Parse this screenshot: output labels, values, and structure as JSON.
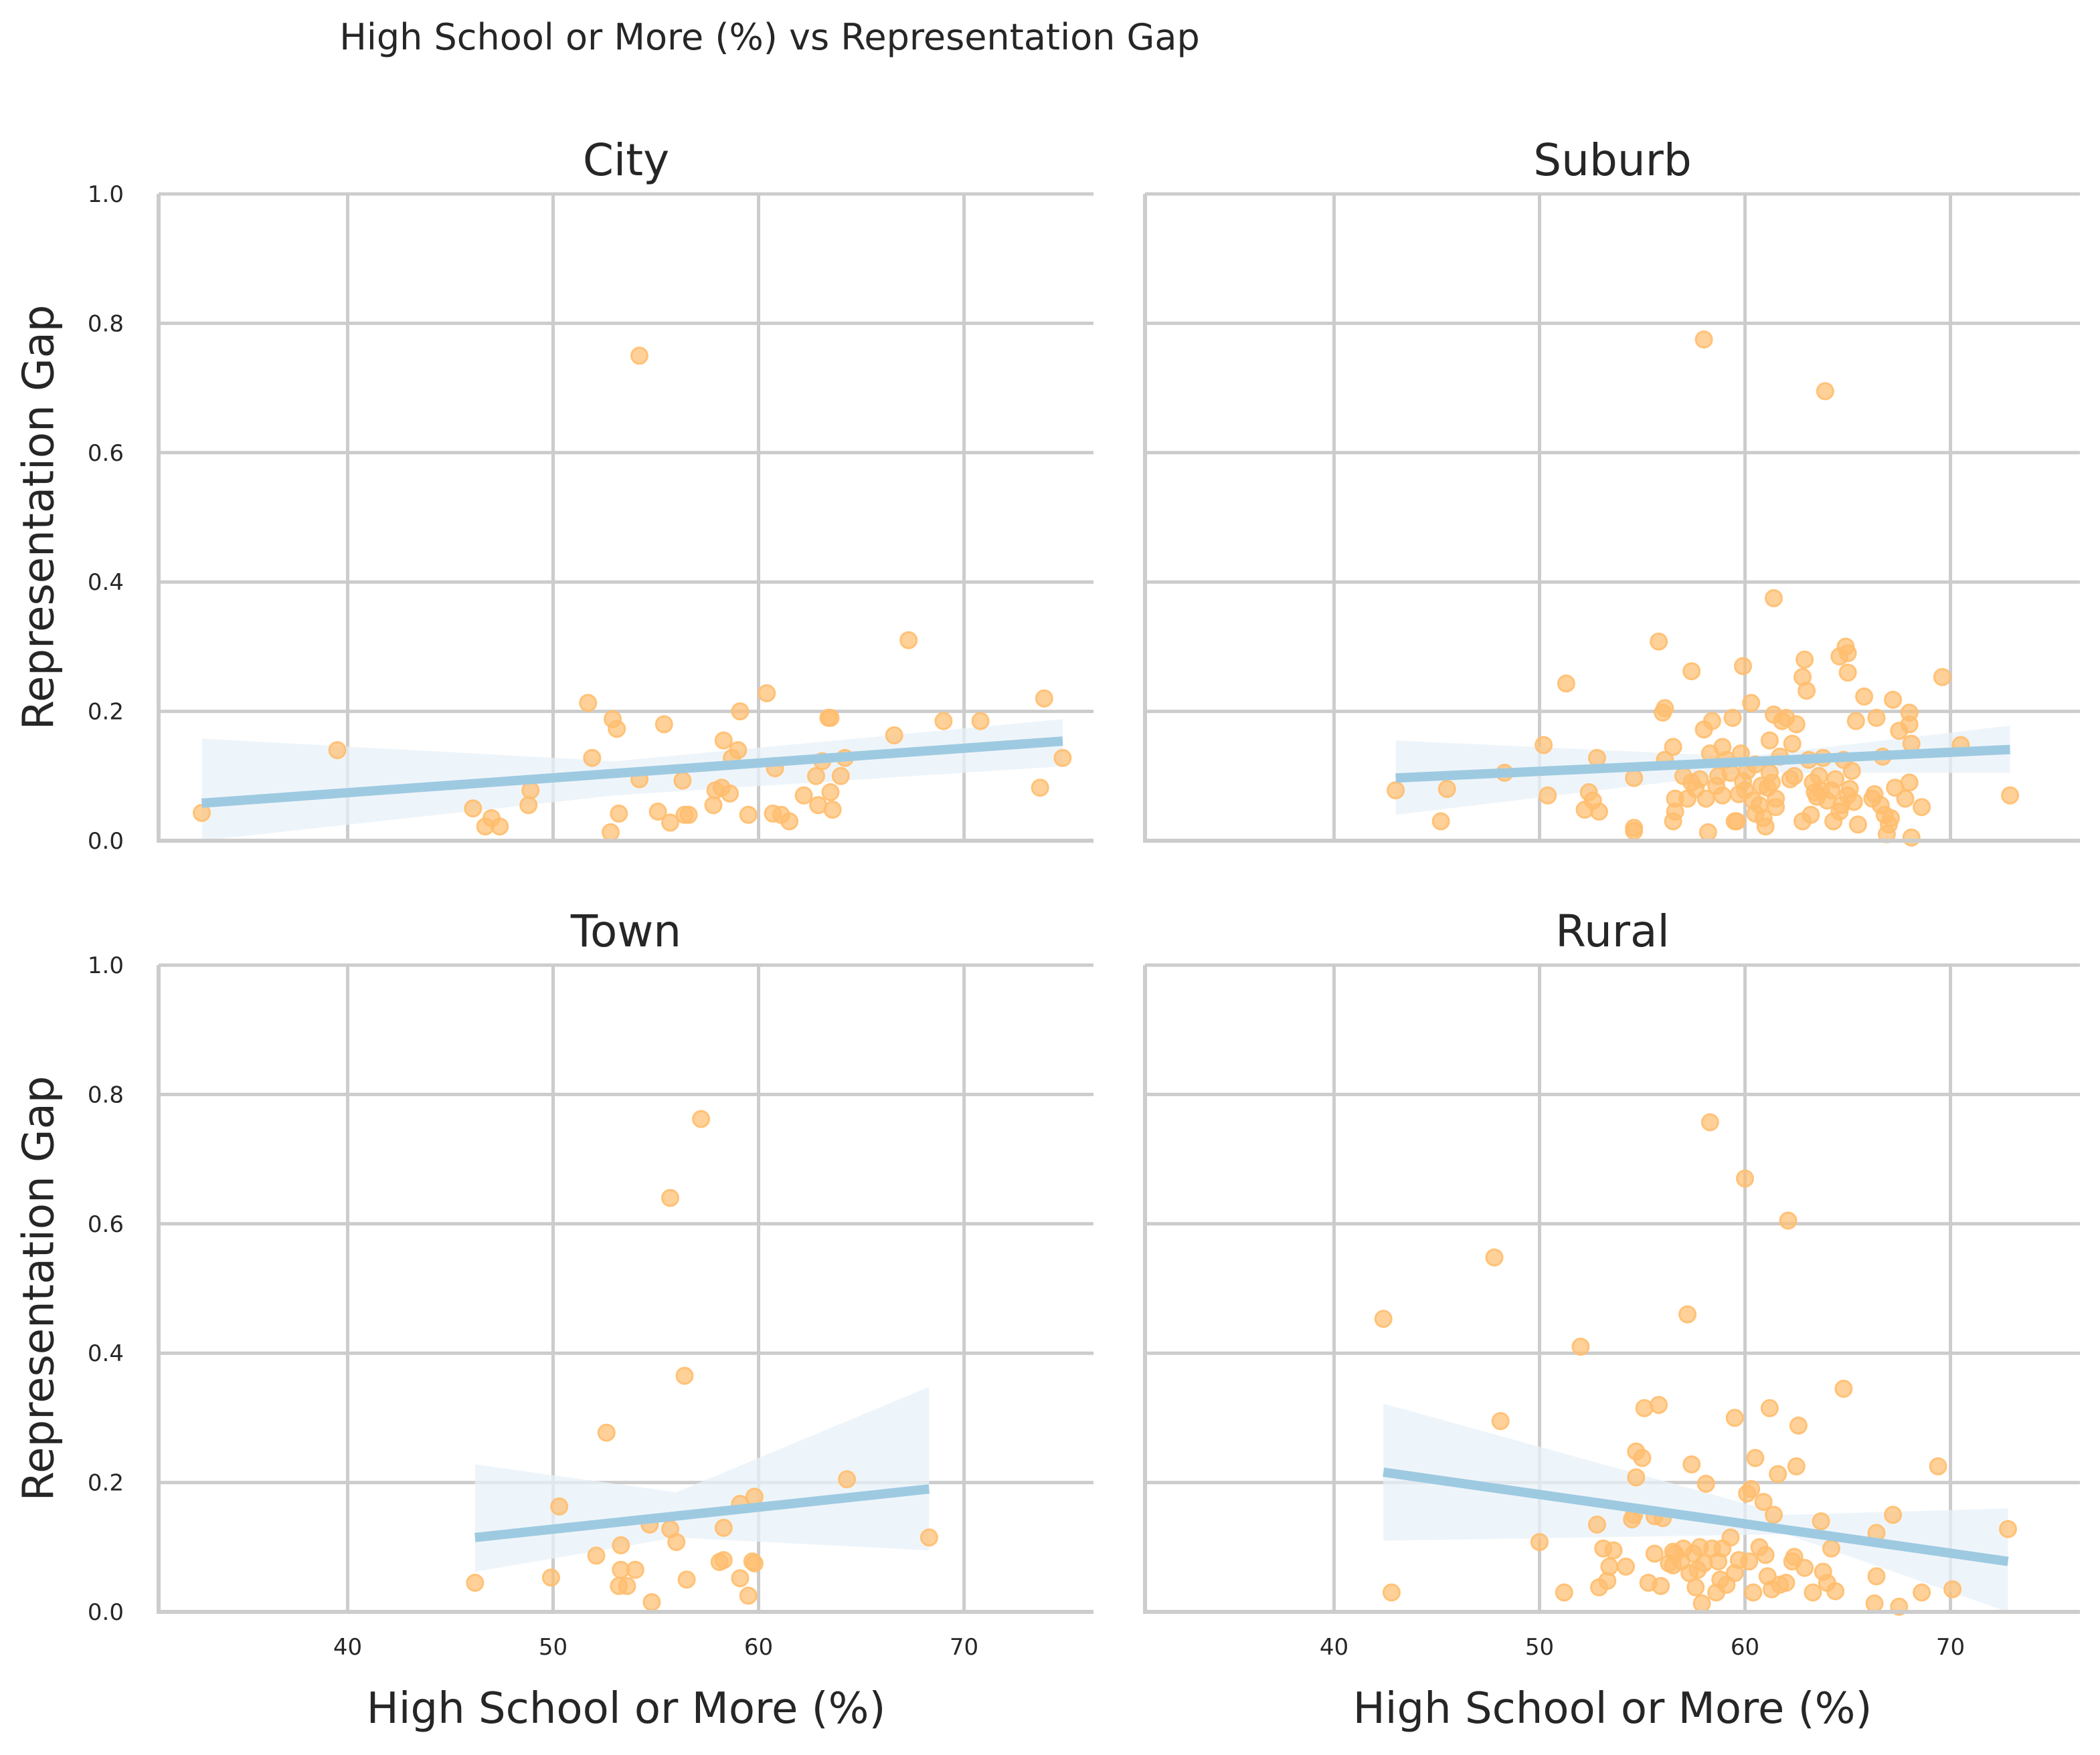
{
  "figure": {
    "title": "High School or More (%) vs Representation Gap",
    "xlabel": "High School or More (%)",
    "ylabel": "Representation Gap"
  },
  "chart_data": [
    {
      "type": "scatter",
      "title": "City",
      "xlabel": "",
      "ylabel": "Representation Gap",
      "xlim": [
        30.8,
        76.3
      ],
      "ylim": [
        0,
        1
      ],
      "xticks": [
        "40",
        "50",
        "60",
        "70"
      ],
      "yticks": [
        "0.0",
        "0.2",
        "0.4",
        "0.6",
        "0.8",
        "1.0"
      ],
      "grid": true,
      "points": [
        [
          32.9,
          0.043
        ],
        [
          39.5,
          0.14
        ],
        [
          46.1,
          0.05
        ],
        [
          46.7,
          0.022
        ],
        [
          47.0,
          0.035
        ],
        [
          47.4,
          0.022
        ],
        [
          48.8,
          0.055
        ],
        [
          48.9,
          0.078
        ],
        [
          51.7,
          0.213
        ],
        [
          51.9,
          0.128
        ],
        [
          52.8,
          0.013
        ],
        [
          52.9,
          0.188
        ],
        [
          53.1,
          0.173
        ],
        [
          53.2,
          0.042
        ],
        [
          54.2,
          0.095
        ],
        [
          54.2,
          0.75
        ],
        [
          55.1,
          0.045
        ],
        [
          55.4,
          0.18
        ],
        [
          55.7,
          0.028
        ],
        [
          56.3,
          0.093
        ],
        [
          56.4,
          0.04
        ],
        [
          56.6,
          0.04
        ],
        [
          57.8,
          0.055
        ],
        [
          57.9,
          0.078
        ],
        [
          58.2,
          0.082
        ],
        [
          58.3,
          0.155
        ],
        [
          58.6,
          0.073
        ],
        [
          58.7,
          0.128
        ],
        [
          59.0,
          0.14
        ],
        [
          59.1,
          0.2
        ],
        [
          59.5,
          0.04
        ],
        [
          60.4,
          0.228
        ],
        [
          60.7,
          0.042
        ],
        [
          60.8,
          0.112
        ],
        [
          61.1,
          0.04
        ],
        [
          61.5,
          0.03
        ],
        [
          62.2,
          0.07
        ],
        [
          62.8,
          0.1
        ],
        [
          62.9,
          0.055
        ],
        [
          63.1,
          0.123
        ],
        [
          63.4,
          0.19
        ],
        [
          63.5,
          0.075
        ],
        [
          63.5,
          0.19
        ],
        [
          63.6,
          0.048
        ],
        [
          64.0,
          0.1
        ],
        [
          64.2,
          0.128
        ],
        [
          66.6,
          0.163
        ],
        [
          67.3,
          0.31
        ],
        [
          69.0,
          0.185
        ],
        [
          70.8,
          0.185
        ],
        [
          73.7,
          0.082
        ],
        [
          73.9,
          0.22
        ],
        [
          74.8,
          0.128
        ]
      ],
      "trend": {
        "x": [
          32.9,
          74.8
        ],
        "y": [
          0.058,
          0.154
        ]
      },
      "ci": {
        "x": [
          32.9,
          53.0,
          74.8
        ],
        "upper": [
          0.158,
          0.123,
          0.188
        ],
        "lower": [
          0.0,
          0.07,
          0.115
        ]
      }
    },
    {
      "type": "scatter",
      "title": "Suburb",
      "xlabel": "",
      "ylabel": "",
      "xlim": [
        30.8,
        76.3
      ],
      "ylim": [
        0,
        1
      ],
      "xticks": [
        "40",
        "50",
        "60",
        "70"
      ],
      "yticks": [
        "0.0",
        "0.2",
        "0.4",
        "0.6",
        "0.8",
        "1.0"
      ],
      "grid": true,
      "points": [
        [
          43.0,
          0.078
        ],
        [
          45.2,
          0.03
        ],
        [
          45.5,
          0.08
        ],
        [
          48.3,
          0.105
        ],
        [
          50.2,
          0.148
        ],
        [
          50.4,
          0.07
        ],
        [
          51.3,
          0.243
        ],
        [
          52.2,
          0.048
        ],
        [
          52.4,
          0.075
        ],
        [
          52.6,
          0.062
        ],
        [
          52.8,
          0.128
        ],
        [
          52.9,
          0.045
        ],
        [
          54.6,
          0.015
        ],
        [
          54.6,
          0.02
        ],
        [
          54.6,
          0.097
        ],
        [
          55.8,
          0.308
        ],
        [
          56.0,
          0.198
        ],
        [
          56.1,
          0.205
        ],
        [
          56.1,
          0.125
        ],
        [
          56.5,
          0.03
        ],
        [
          56.5,
          0.145
        ],
        [
          56.6,
          0.045
        ],
        [
          56.6,
          0.065
        ],
        [
          57.0,
          0.1
        ],
        [
          57.2,
          0.065
        ],
        [
          57.4,
          0.262
        ],
        [
          57.4,
          0.09
        ],
        [
          57.6,
          0.08
        ],
        [
          57.8,
          0.095
        ],
        [
          58.0,
          0.172
        ],
        [
          58.0,
          0.775
        ],
        [
          58.1,
          0.065
        ],
        [
          58.2,
          0.013
        ],
        [
          58.3,
          0.135
        ],
        [
          58.4,
          0.185
        ],
        [
          58.6,
          0.085
        ],
        [
          58.7,
          0.1
        ],
        [
          58.9,
          0.145
        ],
        [
          58.9,
          0.07
        ],
        [
          59.1,
          0.125
        ],
        [
          59.3,
          0.105
        ],
        [
          59.4,
          0.19
        ],
        [
          59.5,
          0.03
        ],
        [
          59.6,
          0.03
        ],
        [
          59.7,
          0.072
        ],
        [
          59.8,
          0.135
        ],
        [
          59.9,
          0.092
        ],
        [
          59.9,
          0.27
        ],
        [
          60.0,
          0.078
        ],
        [
          60.1,
          0.108
        ],
        [
          60.3,
          0.213
        ],
        [
          60.4,
          0.062
        ],
        [
          60.5,
          0.042
        ],
        [
          60.5,
          0.118
        ],
        [
          60.7,
          0.055
        ],
        [
          60.8,
          0.085
        ],
        [
          60.9,
          0.035
        ],
        [
          61.0,
          0.022
        ],
        [
          61.1,
          0.082
        ],
        [
          61.2,
          0.105
        ],
        [
          61.2,
          0.155
        ],
        [
          61.3,
          0.09
        ],
        [
          61.4,
          0.195
        ],
        [
          61.4,
          0.375
        ],
        [
          61.5,
          0.065
        ],
        [
          61.5,
          0.052
        ],
        [
          61.7,
          0.13
        ],
        [
          61.8,
          0.185
        ],
        [
          62.0,
          0.19
        ],
        [
          62.2,
          0.095
        ],
        [
          62.3,
          0.15
        ],
        [
          62.4,
          0.1
        ],
        [
          62.5,
          0.18
        ],
        [
          62.8,
          0.03
        ],
        [
          62.8,
          0.253
        ],
        [
          62.9,
          0.28
        ],
        [
          63.0,
          0.232
        ],
        [
          63.1,
          0.125
        ],
        [
          63.2,
          0.04
        ],
        [
          63.3,
          0.09
        ],
        [
          63.4,
          0.075
        ],
        [
          63.5,
          0.068
        ],
        [
          63.6,
          0.1
        ],
        [
          63.7,
          0.078
        ],
        [
          63.8,
          0.128
        ],
        [
          63.9,
          0.695
        ],
        [
          64.0,
          0.062
        ],
        [
          64.2,
          0.078
        ],
        [
          64.3,
          0.03
        ],
        [
          64.4,
          0.095
        ],
        [
          64.6,
          0.285
        ],
        [
          64.6,
          0.045
        ],
        [
          64.7,
          0.055
        ],
        [
          64.8,
          0.125
        ],
        [
          64.9,
          0.3
        ],
        [
          65.0,
          0.07
        ],
        [
          65.0,
          0.26
        ],
        [
          65.0,
          0.29
        ],
        [
          65.1,
          0.08
        ],
        [
          65.2,
          0.108
        ],
        [
          65.3,
          0.06
        ],
        [
          65.4,
          0.185
        ],
        [
          65.5,
          0.025
        ],
        [
          65.8,
          0.223
        ],
        [
          66.2,
          0.065
        ],
        [
          66.3,
          0.072
        ],
        [
          66.4,
          0.19
        ],
        [
          66.6,
          0.055
        ],
        [
          66.7,
          0.13
        ],
        [
          66.8,
          0.04
        ],
        [
          66.9,
          0.01
        ],
        [
          67.0,
          0.025
        ],
        [
          67.1,
          0.035
        ],
        [
          67.2,
          0.218
        ],
        [
          67.3,
          0.082
        ],
        [
          67.5,
          0.17
        ],
        [
          67.8,
          0.065
        ],
        [
          68.0,
          0.198
        ],
        [
          68.0,
          0.09
        ],
        [
          68.0,
          0.18
        ],
        [
          68.1,
          0.15
        ],
        [
          68.1,
          0.005
        ],
        [
          68.6,
          0.052
        ],
        [
          69.6,
          0.253
        ],
        [
          70.5,
          0.148
        ],
        [
          72.9,
          0.07
        ]
      ],
      "trend": {
        "x": [
          43.0,
          72.9
        ],
        "y": [
          0.097,
          0.141
        ]
      },
      "ci": {
        "x": [
          43.0,
          60.0,
          72.9
        ],
        "upper": [
          0.155,
          0.13,
          0.178
        ],
        "lower": [
          0.04,
          0.105,
          0.105
        ]
      }
    },
    {
      "type": "scatter",
      "title": "Town",
      "xlabel": "High School or More (%)",
      "ylabel": "Representation Gap",
      "xlim": [
        30.8,
        76.3
      ],
      "ylim": [
        0,
        1
      ],
      "xticks": [
        "40",
        "50",
        "60",
        "70"
      ],
      "yticks": [
        "0.0",
        "0.2",
        "0.4",
        "0.6",
        "0.8",
        "1.0"
      ],
      "grid": true,
      "points": [
        [
          46.2,
          0.045
        ],
        [
          49.9,
          0.053
        ],
        [
          50.3,
          0.163
        ],
        [
          52.1,
          0.087
        ],
        [
          52.6,
          0.277
        ],
        [
          53.2,
          0.04
        ],
        [
          53.3,
          0.065
        ],
        [
          53.3,
          0.103
        ],
        [
          53.6,
          0.04
        ],
        [
          54.0,
          0.065
        ],
        [
          54.7,
          0.135
        ],
        [
          54.8,
          0.015
        ],
        [
          55.7,
          0.64
        ],
        [
          55.7,
          0.128
        ],
        [
          56.0,
          0.108
        ],
        [
          56.4,
          0.365
        ],
        [
          56.5,
          0.05
        ],
        [
          57.2,
          0.762
        ],
        [
          58.1,
          0.077
        ],
        [
          58.3,
          0.08
        ],
        [
          58.3,
          0.13
        ],
        [
          59.1,
          0.052
        ],
        [
          59.1,
          0.167
        ],
        [
          59.5,
          0.025
        ],
        [
          59.7,
          0.078
        ],
        [
          59.8,
          0.178
        ],
        [
          59.8,
          0.075
        ],
        [
          64.3,
          0.205
        ],
        [
          68.3,
          0.115
        ]
      ],
      "trend": {
        "x": [
          46.2,
          68.3
        ],
        "y": [
          0.115,
          0.19
        ]
      },
      "ci": {
        "x": [
          46.2,
          56.0,
          68.3
        ],
        "upper": [
          0.228,
          0.185,
          0.348
        ],
        "lower": [
          0.062,
          0.115,
          0.095
        ]
      }
    },
    {
      "type": "scatter",
      "title": "Rural",
      "xlabel": "High School or More (%)",
      "ylabel": "",
      "xlim": [
        30.8,
        76.3
      ],
      "ylim": [
        0,
        1
      ],
      "xticks": [
        "40",
        "50",
        "60",
        "70"
      ],
      "yticks": [
        "0.0",
        "0.2",
        "0.4",
        "0.6",
        "0.8",
        "1.0"
      ],
      "grid": true,
      "points": [
        [
          42.4,
          0.453
        ],
        [
          42.8,
          0.03
        ],
        [
          47.8,
          0.548
        ],
        [
          48.1,
          0.295
        ],
        [
          50.0,
          0.108
        ],
        [
          51.2,
          0.03
        ],
        [
          52.0,
          0.41
        ],
        [
          52.8,
          0.135
        ],
        [
          52.9,
          0.038
        ],
        [
          53.1,
          0.098
        ],
        [
          53.3,
          0.048
        ],
        [
          53.4,
          0.07
        ],
        [
          53.6,
          0.095
        ],
        [
          54.2,
          0.07
        ],
        [
          54.5,
          0.143
        ],
        [
          54.6,
          0.15
        ],
        [
          54.7,
          0.248
        ],
        [
          54.7,
          0.208
        ],
        [
          55.0,
          0.238
        ],
        [
          55.1,
          0.315
        ],
        [
          55.3,
          0.045
        ],
        [
          55.6,
          0.09
        ],
        [
          55.6,
          0.148
        ],
        [
          55.8,
          0.32
        ],
        [
          55.9,
          0.04
        ],
        [
          56.0,
          0.145
        ],
        [
          56.3,
          0.075
        ],
        [
          56.5,
          0.072
        ],
        [
          56.5,
          0.093
        ],
        [
          56.6,
          0.09
        ],
        [
          56.9,
          0.078
        ],
        [
          57.0,
          0.098
        ],
        [
          57.2,
          0.46
        ],
        [
          57.3,
          0.06
        ],
        [
          57.4,
          0.228
        ],
        [
          57.5,
          0.09
        ],
        [
          57.6,
          0.038
        ],
        [
          57.7,
          0.065
        ],
        [
          57.8,
          0.1
        ],
        [
          57.9,
          0.013
        ],
        [
          58.0,
          0.075
        ],
        [
          58.1,
          0.198
        ],
        [
          58.3,
          0.757
        ],
        [
          58.4,
          0.098
        ],
        [
          58.6,
          0.03
        ],
        [
          58.7,
          0.078
        ],
        [
          58.8,
          0.05
        ],
        [
          58.9,
          0.098
        ],
        [
          59.1,
          0.042
        ],
        [
          59.3,
          0.115
        ],
        [
          59.5,
          0.3
        ],
        [
          59.5,
          0.06
        ],
        [
          59.7,
          0.08
        ],
        [
          60.0,
          0.67
        ],
        [
          60.1,
          0.183
        ],
        [
          60.2,
          0.078
        ],
        [
          60.3,
          0.19
        ],
        [
          60.4,
          0.03
        ],
        [
          60.5,
          0.238
        ],
        [
          60.7,
          0.1
        ],
        [
          60.9,
          0.17
        ],
        [
          61.0,
          0.088
        ],
        [
          61.1,
          0.055
        ],
        [
          61.2,
          0.315
        ],
        [
          61.3,
          0.035
        ],
        [
          61.4,
          0.15
        ],
        [
          61.6,
          0.213
        ],
        [
          61.7,
          0.042
        ],
        [
          62.0,
          0.045
        ],
        [
          62.1,
          0.605
        ],
        [
          62.3,
          0.078
        ],
        [
          62.4,
          0.085
        ],
        [
          62.5,
          0.225
        ],
        [
          62.6,
          0.288
        ],
        [
          62.9,
          0.068
        ],
        [
          63.3,
          0.03
        ],
        [
          63.7,
          0.14
        ],
        [
          63.8,
          0.062
        ],
        [
          64.0,
          0.045
        ],
        [
          64.2,
          0.098
        ],
        [
          64.4,
          0.032
        ],
        [
          64.8,
          0.345
        ],
        [
          66.3,
          0.013
        ],
        [
          66.4,
          0.055
        ],
        [
          66.4,
          0.122
        ],
        [
          67.2,
          0.15
        ],
        [
          67.5,
          0.008
        ],
        [
          68.6,
          0.03
        ],
        [
          69.4,
          0.225
        ],
        [
          70.1,
          0.035
        ],
        [
          72.8,
          0.128
        ]
      ],
      "trend": {
        "x": [
          42.4,
          72.8
        ],
        "y": [
          0.216,
          0.078
        ]
      },
      "ci": {
        "x": [
          42.4,
          62.0,
          72.8
        ],
        "upper": [
          0.322,
          0.15,
          0.16
        ],
        "lower": [
          0.11,
          0.12,
          0.0
        ]
      }
    }
  ],
  "colors": {
    "points": "#ffbe6e",
    "trend": "#9ecae1",
    "ci_band": "#e8f1f8",
    "grid": "#cccccc",
    "text": "#262626"
  }
}
